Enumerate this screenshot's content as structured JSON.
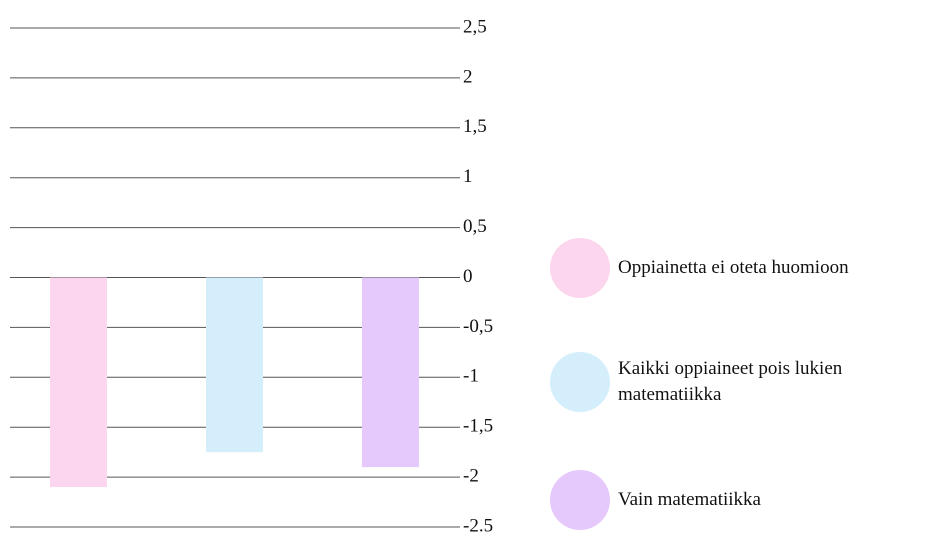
{
  "chart_data": {
    "type": "bar",
    "series": [
      {
        "name": "Oppiainetta ei oteta huomioon",
        "color": "#fcd5ee",
        "values": [
          -2.1
        ]
      },
      {
        "name": "Kaikki oppiaineet pois lukien matematiikka",
        "color": "#d5eefc",
        "values": [
          -1.75
        ]
      },
      {
        "name": "Vain matematiikka",
        "color": "#e5c9fc",
        "values": [
          -1.9
        ]
      }
    ],
    "ylim": [
      -2.5,
      2.5
    ],
    "yticks": [
      {
        "value": 2.5,
        "label": "2,5"
      },
      2,
      {
        "value": 1.5,
        "label": "1,5"
      },
      1,
      {
        "value": 0.5,
        "label": "0,5"
      },
      0,
      {
        "value": -0.5,
        "label": "-0,5"
      },
      -1,
      {
        "value": -1.5,
        "label": "-1,5"
      },
      -2,
      {
        "value": -2.5,
        "label": "-2.5"
      }
    ],
    "grid": true,
    "legend": "right"
  }
}
